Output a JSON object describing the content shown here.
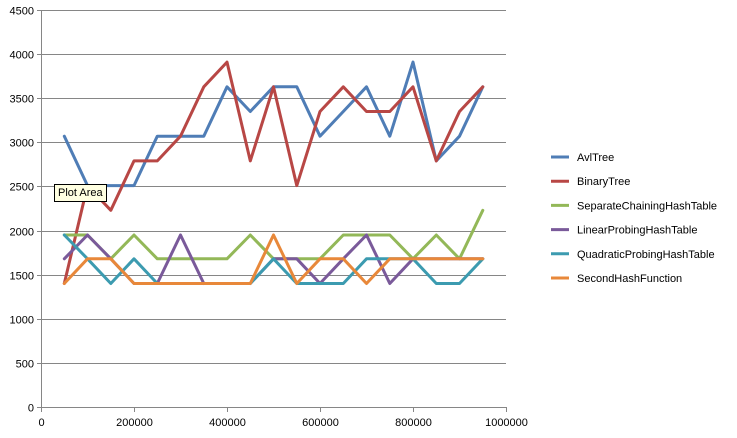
{
  "tooltip": "Plot Area",
  "chart_data": {
    "type": "line",
    "title": "",
    "xlabel": "",
    "ylabel": "",
    "xlim": [
      0,
      1000000
    ],
    "ylim": [
      0,
      4500
    ],
    "xticks": [
      0,
      200000,
      400000,
      600000,
      800000,
      1000000
    ],
    "xtick_labels": [
      "0",
      "200000",
      "400000",
      "600000",
      "800000",
      "1000000"
    ],
    "yticks": [
      0,
      500,
      1000,
      1500,
      2000,
      2500,
      3000,
      3500,
      4000,
      4500
    ],
    "ytick_labels": [
      "0",
      "500",
      "1000",
      "1500",
      "2000",
      "2500",
      "3000",
      "3500",
      "4000",
      "4500"
    ],
    "grid": "horizontal",
    "legend_position": "right",
    "x": [
      50000,
      100000,
      150000,
      200000,
      250000,
      300000,
      350000,
      400000,
      450000,
      500000,
      550000,
      600000,
      650000,
      700000,
      750000,
      800000,
      850000,
      900000,
      950000
    ],
    "series": [
      {
        "name": "AvlTree",
        "color": "#4f7db6",
        "values": [
          3070,
          2510,
          2510,
          2510,
          3070,
          3070,
          3070,
          3630,
          3350,
          3630,
          3630,
          3070,
          3350,
          3630,
          3070,
          3910,
          2790,
          3070,
          3630
        ]
      },
      {
        "name": "BinaryTree",
        "color": "#b84745",
        "values": [
          1400,
          2510,
          2230,
          2790,
          2790,
          3070,
          3630,
          3910,
          2790,
          3630,
          2510,
          3350,
          3630,
          3350,
          3350,
          3630,
          2790,
          3350,
          3630
        ]
      },
      {
        "name": "SeparateChainingHashTable",
        "color": "#93b858",
        "values": [
          1950,
          1950,
          1680,
          1950,
          1680,
          1680,
          1680,
          1680,
          1950,
          1680,
          1680,
          1680,
          1950,
          1950,
          1950,
          1680,
          1950,
          1680,
          2230
        ]
      },
      {
        "name": "LinearProbingHashTable",
        "color": "#7a5a9a",
        "values": [
          1680,
          1950,
          1680,
          1400,
          1400,
          1950,
          1400,
          null,
          1400,
          1680,
          1680,
          1400,
          1680,
          1950,
          1400,
          1680,
          1680,
          1680,
          1680
        ]
      },
      {
        "name": "QuadraticProbingHashTable",
        "color": "#3c9bb0",
        "values": [
          1950,
          1680,
          1400,
          1680,
          1400,
          1400,
          1400,
          1400,
          1400,
          1680,
          1400,
          1400,
          1400,
          1680,
          1680,
          1680,
          1400,
          1400,
          1680
        ]
      },
      {
        "name": "SecondHashFunction",
        "color": "#e8883a",
        "values": [
          1400,
          1680,
          1680,
          1400,
          1400,
          1400,
          1400,
          1400,
          1400,
          1950,
          1400,
          1680,
          1680,
          1400,
          1680,
          1680,
          1680,
          1680,
          1680
        ]
      }
    ]
  }
}
